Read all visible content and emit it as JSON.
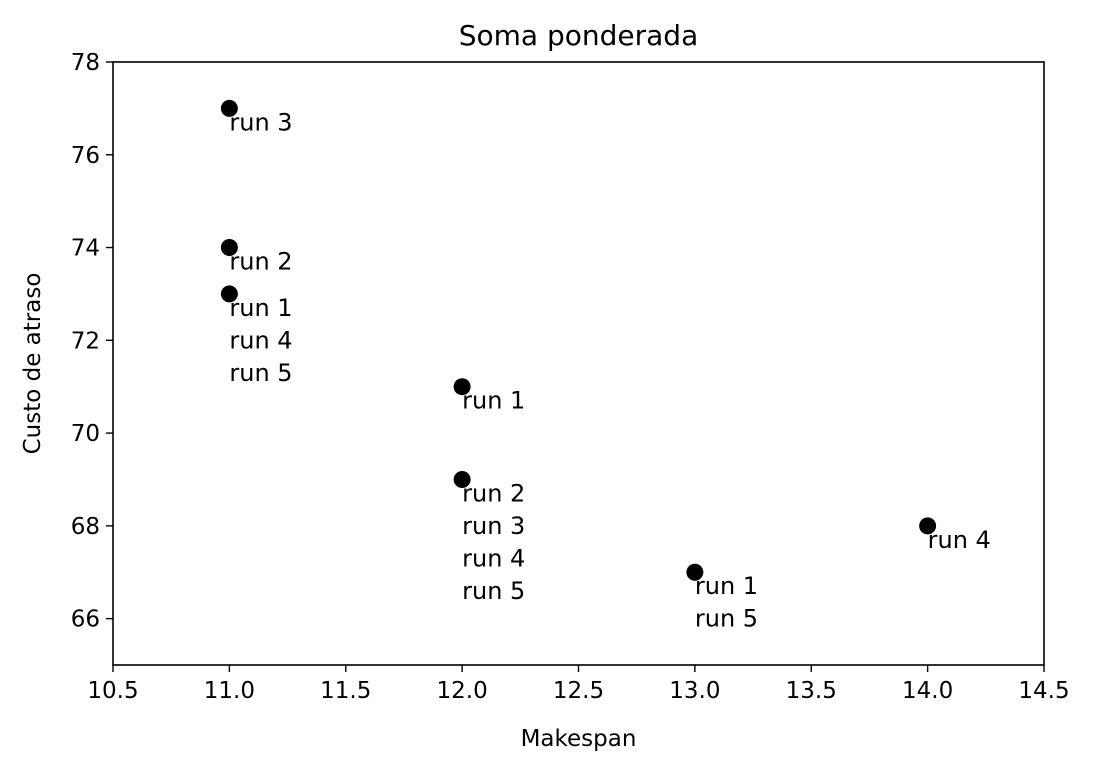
{
  "chart_data": {
    "type": "scatter",
    "title": "Soma ponderada",
    "xlabel": "Makespan",
    "ylabel": "Custo de atraso",
    "xlim": [
      10.5,
      14.5
    ],
    "ylim": [
      65,
      78
    ],
    "x_ticks": [
      "10.5",
      "11.0",
      "11.5",
      "12.0",
      "12.5",
      "13.0",
      "13.5",
      "14.0",
      "14.5"
    ],
    "y_ticks": [
      "66",
      "68",
      "70",
      "72",
      "74",
      "76",
      "78"
    ],
    "grid": false,
    "marker_color": "#000000",
    "points": [
      {
        "x": 11,
        "y": 77,
        "labels": [
          "run 3"
        ]
      },
      {
        "x": 11,
        "y": 74,
        "labels": [
          "run 2"
        ]
      },
      {
        "x": 11,
        "y": 73,
        "labels": [
          "run 1",
          "run 4",
          "run 5"
        ]
      },
      {
        "x": 12,
        "y": 71,
        "labels": [
          "run 1"
        ]
      },
      {
        "x": 12,
        "y": 69,
        "labels": [
          "run 2",
          "run 3",
          "run 4",
          "run 5"
        ]
      },
      {
        "x": 13,
        "y": 67,
        "labels": [
          "run 1",
          "run 5"
        ]
      },
      {
        "x": 14,
        "y": 68,
        "labels": [
          "run 4"
        ]
      }
    ]
  }
}
